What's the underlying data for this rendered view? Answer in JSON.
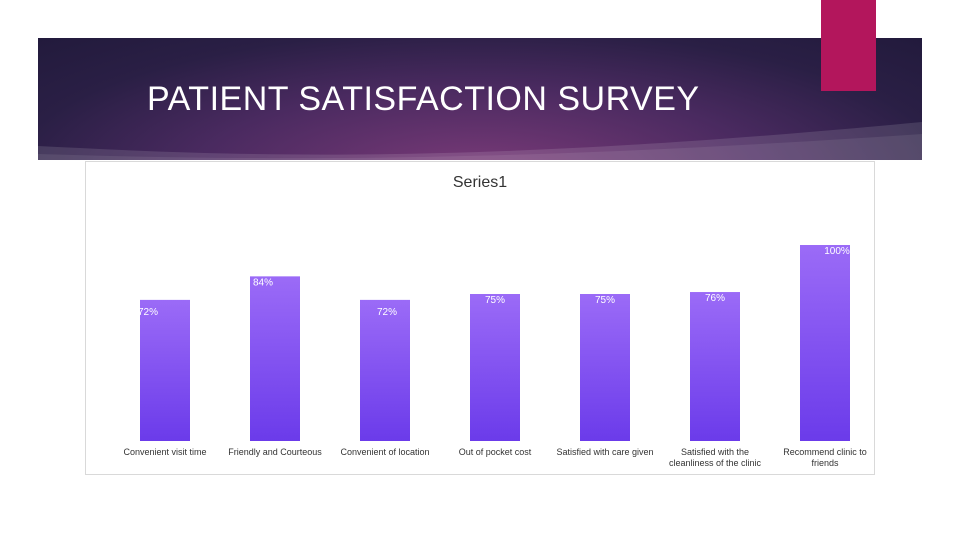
{
  "slide": {
    "title": "PATIENT SATISFACTION SURVEY"
  },
  "colors": {
    "banner_dark": "#221a3c",
    "banner_glow": "#7a3a78",
    "accent": "#b3165c",
    "bar_top": "#9b6bf7",
    "bar_bottom": "#6b3bea"
  },
  "chart_data": {
    "type": "bar",
    "title": "Series1",
    "categories": [
      [
        "Convenient visit time"
      ],
      [
        "Friendly and Courteous"
      ],
      [
        "Convenient of location"
      ],
      [
        "Out of pocket cost"
      ],
      [
        "Satisfied with care given"
      ],
      [
        "Satisfied with the",
        "cleanliness of the clinic"
      ],
      [
        "Recommend clinic to",
        "friends"
      ]
    ],
    "values": [
      72,
      84,
      72,
      75,
      75,
      76,
      100
    ],
    "value_labels": [
      "72%",
      "84%",
      "72%",
      "75%",
      "75%",
      "76%",
      "100%"
    ],
    "xlabel": "",
    "ylabel": "",
    "ylim": [
      0,
      100
    ],
    "grid": false,
    "legend": "none"
  }
}
